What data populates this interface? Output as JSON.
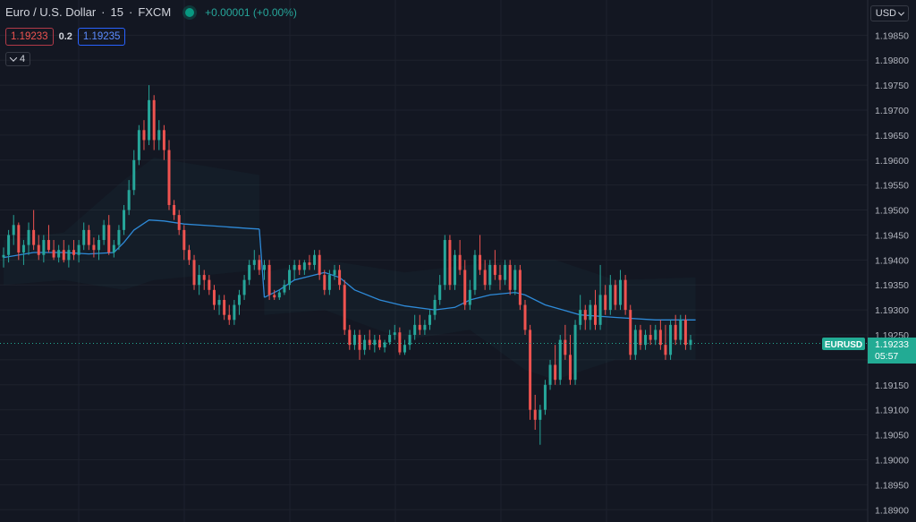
{
  "header": {
    "symbol": "Euro / U.S. Dollar",
    "sep": "·",
    "interval": "15",
    "exchange": "FXCM",
    "change": "+0.00001 (+0.00%)",
    "bid": "1.19233",
    "spread": "0.2",
    "ask": "1.19235",
    "indicator_count": "4"
  },
  "price_scale": {
    "currency": "USD",
    "tick_labels": [
      "1.19850",
      "1.19800",
      "1.19750",
      "1.19700",
      "1.19650",
      "1.19600",
      "1.19550",
      "1.19500",
      "1.19450",
      "1.19400",
      "1.19350",
      "1.19300",
      "1.19250",
      "1.19200",
      "1.19150",
      "1.19100",
      "1.19050",
      "1.19000",
      "1.18950",
      "1.18900"
    ],
    "last_price_label": {
      "symbol": "EURUSD",
      "price": "1.19233",
      "countdown": "05:57"
    }
  },
  "colors": {
    "background": "#131722",
    "up": "#26a69a",
    "down": "#ef5350",
    "grid": "#1e222d",
    "ma_line": "#2e8ad8",
    "last_price": "#22ab94"
  },
  "chart_data": {
    "type": "candlestick",
    "ylim": [
      1.1887,
      1.1989
    ],
    "grid": true,
    "last_price": 1.19233,
    "candles": [
      [
        1.19405,
        1.19425,
        1.19385,
        1.1941
      ],
      [
        1.1941,
        1.1946,
        1.19395,
        1.1945
      ],
      [
        1.1945,
        1.1949,
        1.1943,
        1.1947
      ],
      [
        1.1947,
        1.19475,
        1.194,
        1.19415
      ],
      [
        1.19415,
        1.1944,
        1.1939,
        1.1943
      ],
      [
        1.1943,
        1.19475,
        1.1941,
        1.1946
      ],
      [
        1.1946,
        1.195,
        1.1942,
        1.1943
      ],
      [
        1.1943,
        1.1945,
        1.194,
        1.1941
      ],
      [
        1.1941,
        1.1945,
        1.19395,
        1.1944
      ],
      [
        1.1944,
        1.1947,
        1.19415,
        1.1942
      ],
      [
        1.1942,
        1.1944,
        1.194,
        1.19405
      ],
      [
        1.19405,
        1.1943,
        1.19395,
        1.1942
      ],
      [
        1.1942,
        1.1944,
        1.19395,
        1.194
      ],
      [
        1.194,
        1.1943,
        1.19385,
        1.1942
      ],
      [
        1.1942,
        1.1944,
        1.194,
        1.1941
      ],
      [
        1.1941,
        1.1944,
        1.19395,
        1.1943
      ],
      [
        1.1943,
        1.19475,
        1.1942,
        1.1946
      ],
      [
        1.1946,
        1.1947,
        1.1942,
        1.1943
      ],
      [
        1.1943,
        1.19445,
        1.19405,
        1.1942
      ],
      [
        1.1942,
        1.1945,
        1.194,
        1.1944
      ],
      [
        1.1944,
        1.1948,
        1.1943,
        1.1947
      ],
      [
        1.1947,
        1.1949,
        1.1941,
        1.19415
      ],
      [
        1.19415,
        1.1944,
        1.19405,
        1.1943
      ],
      [
        1.1943,
        1.1947,
        1.1942,
        1.1946
      ],
      [
        1.1946,
        1.1951,
        1.1945,
        1.195
      ],
      [
        1.195,
        1.1956,
        1.1949,
        1.1954
      ],
      [
        1.1954,
        1.1962,
        1.1953,
        1.196
      ],
      [
        1.196,
        1.1967,
        1.1959,
        1.1966
      ],
      [
        1.1966,
        1.1968,
        1.1962,
        1.1964
      ],
      [
        1.1964,
        1.1975,
        1.1963,
        1.1972
      ],
      [
        1.1972,
        1.1973,
        1.1962,
        1.1964
      ],
      [
        1.1964,
        1.1968,
        1.1962,
        1.1966
      ],
      [
        1.1966,
        1.1967,
        1.196,
        1.1962
      ],
      [
        1.1962,
        1.1964,
        1.195,
        1.1951
      ],
      [
        1.1951,
        1.1952,
        1.1948,
        1.1949
      ],
      [
        1.1949,
        1.195,
        1.1945,
        1.1946
      ],
      [
        1.1946,
        1.1947,
        1.194,
        1.1942
      ],
      [
        1.1942,
        1.1943,
        1.1939,
        1.194
      ],
      [
        1.194,
        1.1941,
        1.1934,
        1.1935
      ],
      [
        1.1935,
        1.1939,
        1.1933,
        1.1937
      ],
      [
        1.1937,
        1.1938,
        1.1934,
        1.1936
      ],
      [
        1.1936,
        1.1937,
        1.1933,
        1.1934
      ],
      [
        1.1934,
        1.1935,
        1.193,
        1.1931
      ],
      [
        1.1931,
        1.1933,
        1.1929,
        1.1932
      ],
      [
        1.1932,
        1.1933,
        1.1928,
        1.1929
      ],
      [
        1.1929,
        1.1931,
        1.1927,
        1.1928
      ],
      [
        1.1928,
        1.1932,
        1.1927,
        1.1931
      ],
      [
        1.1931,
        1.1934,
        1.1929,
        1.1933
      ],
      [
        1.1933,
        1.1937,
        1.1932,
        1.1936
      ],
      [
        1.1936,
        1.194,
        1.1935,
        1.1939
      ],
      [
        1.1939,
        1.1942,
        1.1938,
        1.194
      ],
      [
        1.194,
        1.1941,
        1.1937,
        1.1938
      ],
      [
        1.1938,
        1.194,
        1.1936,
        1.1939
      ],
      [
        1.1939,
        1.194,
        1.1932,
        1.1933
      ],
      [
        1.1933,
        1.1934,
        1.1932,
        1.19325
      ],
      [
        1.19325,
        1.1934,
        1.1932,
        1.19335
      ],
      [
        1.19335,
        1.1936,
        1.1933,
        1.1935
      ],
      [
        1.1935,
        1.1939,
        1.1934,
        1.1938
      ],
      [
        1.1938,
        1.194,
        1.1936,
        1.1939
      ],
      [
        1.1939,
        1.194,
        1.1937,
        1.1938
      ],
      [
        1.1938,
        1.194,
        1.1937,
        1.19395
      ],
      [
        1.19395,
        1.1941,
        1.1938,
        1.1939
      ],
      [
        1.1939,
        1.1942,
        1.1938,
        1.1941
      ],
      [
        1.1941,
        1.1942,
        1.1936,
        1.1937
      ],
      [
        1.1937,
        1.1938,
        1.1933,
        1.1934
      ],
      [
        1.1934,
        1.1938,
        1.1933,
        1.1937
      ],
      [
        1.1937,
        1.1939,
        1.1936,
        1.1938
      ],
      [
        1.1938,
        1.1939,
        1.1934,
        1.1935
      ],
      [
        1.1935,
        1.1936,
        1.1925,
        1.1926
      ],
      [
        1.1926,
        1.1927,
        1.1922,
        1.1923
      ],
      [
        1.1923,
        1.1926,
        1.1922,
        1.1925
      ],
      [
        1.1925,
        1.1926,
        1.192,
        1.1922
      ],
      [
        1.1922,
        1.1925,
        1.1921,
        1.1924
      ],
      [
        1.1924,
        1.1926,
        1.1922,
        1.1923
      ],
      [
        1.1923,
        1.1925,
        1.19215,
        1.1924
      ],
      [
        1.1924,
        1.1925,
        1.1922,
        1.19225
      ],
      [
        1.19225,
        1.1924,
        1.19215,
        1.19235
      ],
      [
        1.19235,
        1.1926,
        1.1923,
        1.1925
      ],
      [
        1.1925,
        1.1927,
        1.1924,
        1.19255
      ],
      [
        1.19255,
        1.19265,
        1.1921,
        1.19215
      ],
      [
        1.19215,
        1.1924,
        1.1921,
        1.1923
      ],
      [
        1.1923,
        1.1926,
        1.1922,
        1.1925
      ],
      [
        1.1925,
        1.1929,
        1.1924,
        1.1927
      ],
      [
        1.1927,
        1.1929,
        1.1925,
        1.1926
      ],
      [
        1.1926,
        1.1928,
        1.1925,
        1.1927
      ],
      [
        1.1927,
        1.193,
        1.1926,
        1.1929
      ],
      [
        1.1929,
        1.1933,
        1.1928,
        1.1932
      ],
      [
        1.1932,
        1.1937,
        1.1931,
        1.1935
      ],
      [
        1.1935,
        1.1945,
        1.1934,
        1.1944
      ],
      [
        1.1944,
        1.1945,
        1.1934,
        1.1935
      ],
      [
        1.1935,
        1.1942,
        1.1934,
        1.1941
      ],
      [
        1.1941,
        1.1944,
        1.1937,
        1.1938
      ],
      [
        1.1938,
        1.194,
        1.193,
        1.1931
      ],
      [
        1.1931,
        1.1936,
        1.193,
        1.1934
      ],
      [
        1.1934,
        1.1942,
        1.1933,
        1.1941
      ],
      [
        1.1941,
        1.1945,
        1.1937,
        1.1938
      ],
      [
        1.1938,
        1.194,
        1.1934,
        1.1935
      ],
      [
        1.1935,
        1.194,
        1.1934,
        1.1939
      ],
      [
        1.1939,
        1.1942,
        1.1936,
        1.1937
      ],
      [
        1.1937,
        1.1939,
        1.1934,
        1.1936
      ],
      [
        1.1936,
        1.194,
        1.1935,
        1.1939
      ],
      [
        1.1939,
        1.194,
        1.1933,
        1.1934
      ],
      [
        1.1934,
        1.1939,
        1.1933,
        1.1938
      ],
      [
        1.1938,
        1.1939,
        1.193,
        1.1931
      ],
      [
        1.1931,
        1.1932,
        1.1925,
        1.1926
      ],
      [
        1.1926,
        1.1927,
        1.1908,
        1.191
      ],
      [
        1.191,
        1.1913,
        1.1906,
        1.1908
      ],
      [
        1.1908,
        1.1911,
        1.1903,
        1.191
      ],
      [
        1.191,
        1.1916,
        1.1909,
        1.1915
      ],
      [
        1.1915,
        1.192,
        1.1914,
        1.1919
      ],
      [
        1.1919,
        1.1923,
        1.1915,
        1.1916
      ],
      [
        1.1916,
        1.1925,
        1.1915,
        1.1924
      ],
      [
        1.1924,
        1.1927,
        1.192,
        1.1921
      ],
      [
        1.1921,
        1.1925,
        1.1915,
        1.1916
      ],
      [
        1.1916,
        1.1928,
        1.1915,
        1.1927
      ],
      [
        1.1927,
        1.1933,
        1.1926,
        1.193
      ],
      [
        1.193,
        1.1931,
        1.1926,
        1.1928
      ],
      [
        1.1928,
        1.1932,
        1.1926,
        1.1931
      ],
      [
        1.1931,
        1.1934,
        1.1926,
        1.1927
      ],
      [
        1.1927,
        1.1939,
        1.1926,
        1.1933
      ],
      [
        1.1933,
        1.1935,
        1.1929,
        1.193
      ],
      [
        1.193,
        1.1937,
        1.1929,
        1.1935
      ],
      [
        1.1935,
        1.1936,
        1.193,
        1.1931
      ],
      [
        1.1931,
        1.1938,
        1.193,
        1.1936
      ],
      [
        1.1936,
        1.1937,
        1.1929,
        1.193
      ],
      [
        1.193,
        1.1931,
        1.192,
        1.1921
      ],
      [
        1.1921,
        1.1927,
        1.192,
        1.1926
      ],
      [
        1.1926,
        1.1927,
        1.1922,
        1.1923
      ],
      [
        1.1923,
        1.1926,
        1.1922,
        1.1925
      ],
      [
        1.1925,
        1.1927,
        1.1923,
        1.1924
      ],
      [
        1.1924,
        1.1927,
        1.1923,
        1.1926
      ],
      [
        1.1926,
        1.1928,
        1.1922,
        1.1923
      ],
      [
        1.1923,
        1.1927,
        1.192,
        1.1921
      ],
      [
        1.1921,
        1.1928,
        1.192,
        1.1927
      ],
      [
        1.1927,
        1.1929,
        1.1923,
        1.1924
      ],
      [
        1.1924,
        1.1929,
        1.1923,
        1.1928
      ],
      [
        1.1928,
        1.1929,
        1.1922,
        1.1923
      ],
      [
        1.1923,
        1.1925,
        1.1922,
        1.1924
      ]
    ],
    "ma_segments": [
      [
        [
          0,
          1.19405
        ],
        [
          6,
          1.19415
        ],
        [
          12,
          1.19415
        ],
        [
          17,
          1.19412
        ],
        [
          22,
          1.19415
        ],
        [
          24,
          1.19435
        ],
        [
          26,
          1.1946
        ],
        [
          29,
          1.1948
        ],
        [
          32,
          1.19478
        ],
        [
          36,
          1.19472
        ],
        [
          42,
          1.19468
        ],
        [
          49,
          1.19463
        ],
        [
          51,
          1.19462
        ]
      ],
      [
        [
          52,
          1.19325
        ],
        [
          55,
          1.1934
        ],
        [
          58,
          1.1936
        ],
        [
          62,
          1.1937
        ],
        [
          64,
          1.19375
        ],
        [
          67,
          1.19365
        ],
        [
          70,
          1.1934
        ],
        [
          75,
          1.1932
        ],
        [
          80,
          1.19308
        ],
        [
          86,
          1.193
        ],
        [
          90,
          1.19305
        ],
        [
          93,
          1.1932
        ],
        [
          97,
          1.1933
        ],
        [
          102,
          1.19335
        ],
        [
          104,
          1.1933
        ],
        [
          108,
          1.1931
        ],
        [
          115,
          1.1929
        ],
        [
          122,
          1.19285
        ],
        [
          130,
          1.1928
        ],
        [
          138,
          1.1928
        ]
      ]
    ],
    "band_segments": [
      [
        [
          0,
          1.1935,
          1.1944
        ],
        [
          12,
          1.1936,
          1.19455
        ],
        [
          24,
          1.1934,
          1.1956
        ],
        [
          30,
          1.1936,
          1.19605
        ],
        [
          51,
          1.1938,
          1.1957
        ]
      ],
      [
        [
          52,
          1.1929,
          1.19375
        ],
        [
          64,
          1.193,
          1.194
        ],
        [
          80,
          1.1924,
          1.19375
        ],
        [
          93,
          1.1926,
          1.1939
        ],
        [
          104,
          1.1918,
          1.194
        ],
        [
          110,
          1.1916,
          1.194
        ],
        [
          122,
          1.192,
          1.1936
        ],
        [
          138,
          1.192,
          1.19365
        ]
      ]
    ]
  }
}
